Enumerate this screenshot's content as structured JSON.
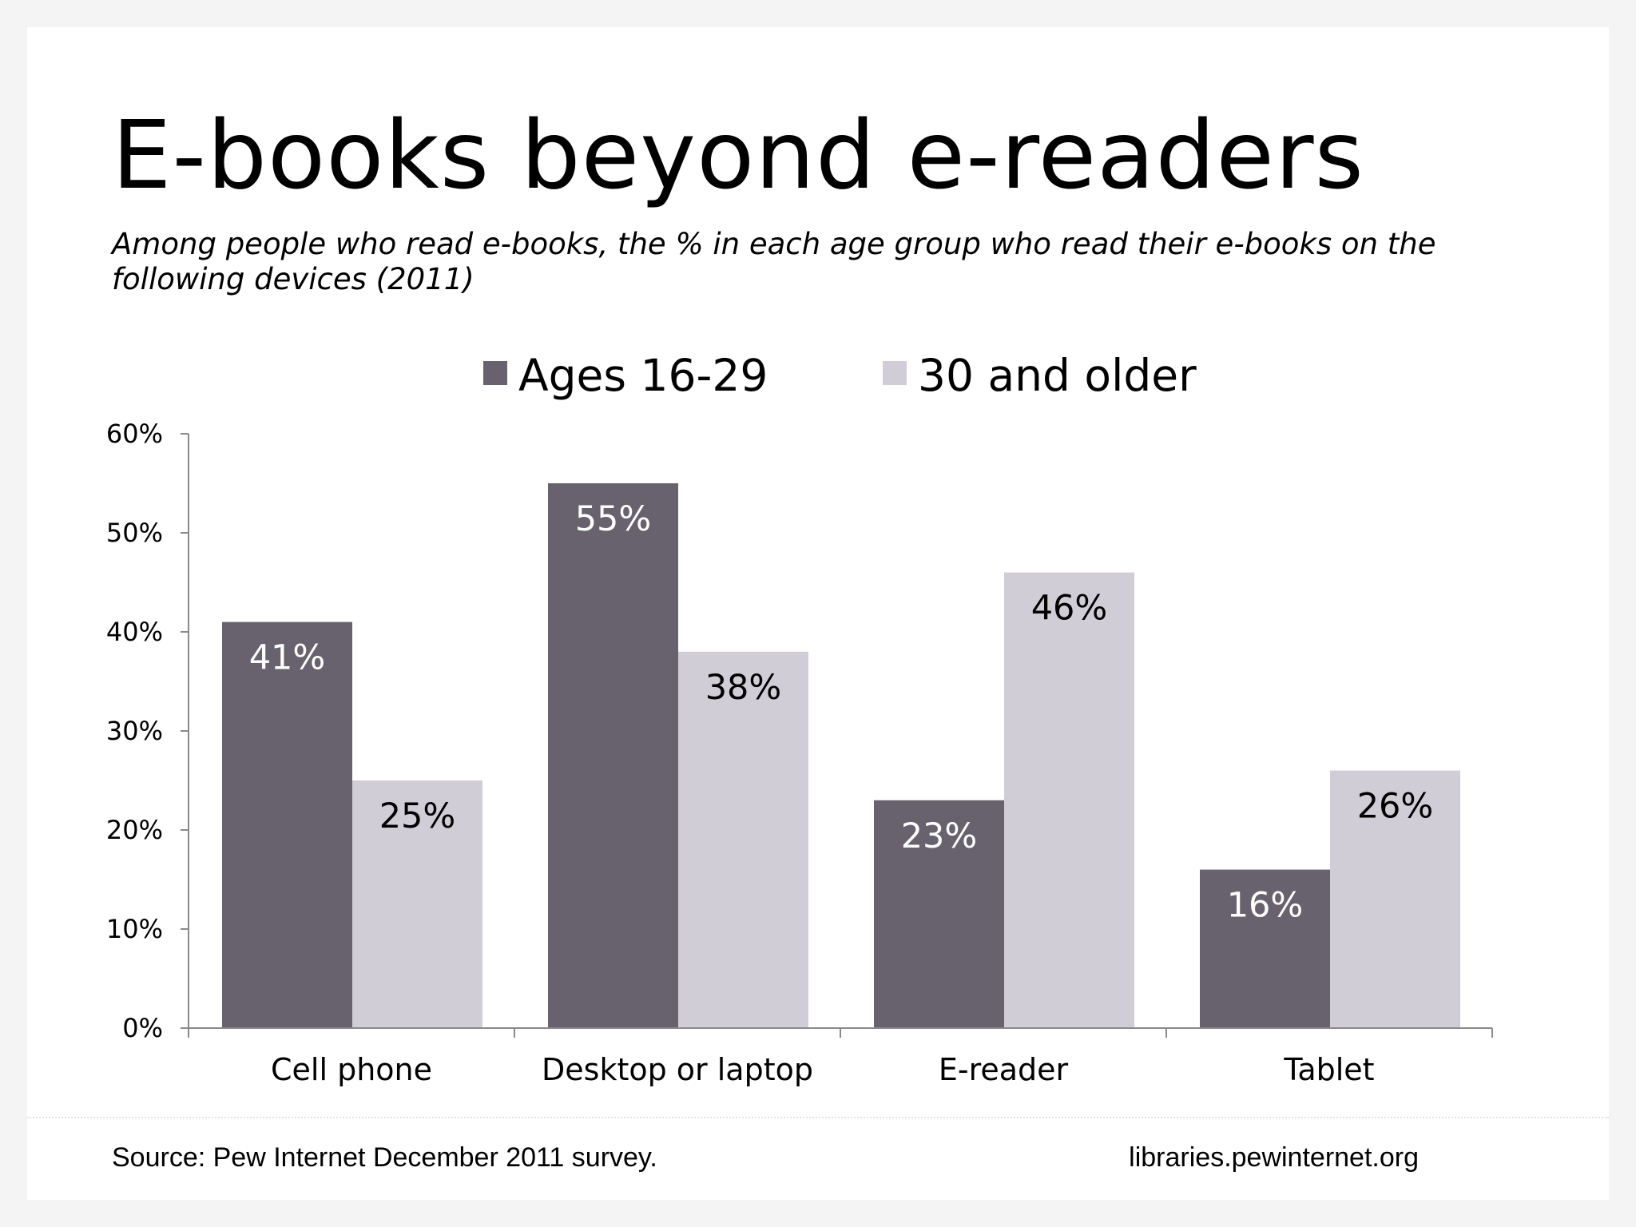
{
  "page": {
    "source": "Source: Pew Internet December 2011 survey.",
    "site": "libraries.pewinternet.org"
  },
  "chart_data": {
    "type": "bar",
    "title": "E-books beyond e-readers",
    "subtitle": "Among people who read e-books, the % in each age group who read their e-books on the following devices (2011)",
    "categories": [
      "Cell phone",
      "Desktop or laptop",
      "E-reader",
      "Tablet"
    ],
    "series": [
      {
        "name": "Ages 16-29",
        "values": [
          41,
          55,
          23,
          16
        ],
        "color": "#67626e",
        "label_color": "#ffffff"
      },
      {
        "name": "30 and older",
        "values": [
          25,
          38,
          46,
          26
        ],
        "color": "#d1cdd6",
        "label_color": "#000000"
      }
    ],
    "ylim": [
      0,
      60
    ],
    "yticks": [
      0,
      10,
      20,
      30,
      40,
      50,
      60
    ],
    "ytick_labels": [
      "0%",
      "10%",
      "20%",
      "30%",
      "40%",
      "50%",
      "60%"
    ],
    "value_suffix": "%",
    "legend": "top",
    "grid": false,
    "xlabel": "",
    "ylabel": ""
  }
}
